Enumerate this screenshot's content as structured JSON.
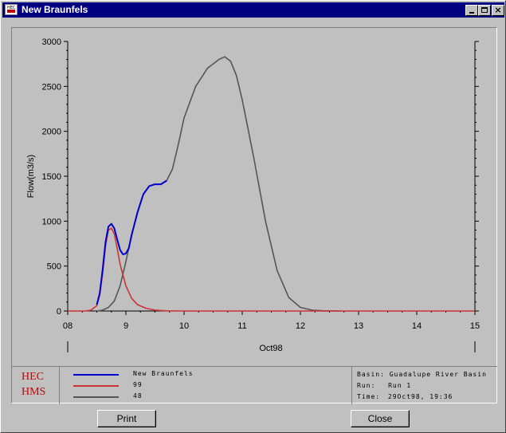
{
  "window": {
    "title": "New Braunfels",
    "controls": [
      "minimize",
      "maximize",
      "close"
    ]
  },
  "logo": {
    "line1": "HEC",
    "line2": "HMS"
  },
  "legend": [
    {
      "name": "New Braunfels",
      "color": "#0000cc"
    },
    {
      "name": "99",
      "color": "#cc3333"
    },
    {
      "name": "48",
      "color": "#555555"
    }
  ],
  "info": {
    "basin_label": "Basin:",
    "basin_value": "Guadalupe River Basin",
    "run_label": "Run:",
    "run_value": "Run 1",
    "time_label": "Time:",
    "time_value": "29Oct98, 19:36"
  },
  "buttons": {
    "print": "Print",
    "close": "Close"
  },
  "colors": {
    "titlebar": "#000080",
    "window": "#c0c0c0",
    "logo": "#cc0000"
  },
  "chart_data": {
    "type": "line",
    "ylabel": "Flow(m3/s)",
    "xlabel": "Oct98",
    "xlim": [
      8,
      15
    ],
    "ylim": [
      0,
      3000
    ],
    "xticks": [
      8,
      9,
      10,
      11,
      12,
      13,
      14,
      15
    ],
    "xtick_labels": [
      "08",
      "9",
      "10",
      "11",
      "12",
      "13",
      "14",
      "15"
    ],
    "yticks": [
      0,
      500,
      1000,
      1500,
      2000,
      2500,
      3000
    ],
    "ytick_labels": [
      "0",
      "500",
      "1000",
      "1500",
      "2000",
      "2500",
      "3000"
    ],
    "grid": false,
    "series": [
      {
        "name": "48",
        "color": "#555555",
        "x": [
          8.5,
          8.6,
          8.7,
          8.8,
          8.9,
          9.0,
          9.1,
          9.2,
          9.3,
          9.4,
          9.5,
          9.6,
          9.7,
          9.8,
          9.9,
          10.0,
          10.2,
          10.4,
          10.6,
          10.7,
          10.8,
          10.9,
          11.0,
          11.2,
          11.4,
          11.6,
          11.8,
          12.0,
          12.2,
          12.4,
          12.7
        ],
        "y": [
          0,
          10,
          40,
          110,
          280,
          550,
          850,
          1100,
          1300,
          1390,
          1410,
          1410,
          1450,
          1580,
          1850,
          2150,
          2500,
          2700,
          2800,
          2830,
          2780,
          2620,
          2350,
          1700,
          1000,
          450,
          150,
          40,
          10,
          2,
          0
        ]
      },
      {
        "name": "99",
        "color": "#cc3333",
        "x": [
          8.0,
          8.3,
          8.4,
          8.5,
          8.55,
          8.6,
          8.65,
          8.7,
          8.75,
          8.8,
          8.85,
          8.9,
          9.0,
          9.1,
          9.2,
          9.35,
          9.5,
          9.7,
          10.0,
          15.0
        ],
        "y": [
          0,
          0,
          10,
          60,
          180,
          420,
          730,
          900,
          920,
          860,
          700,
          520,
          280,
          140,
          70,
          30,
          10,
          2,
          0,
          0
        ]
      },
      {
        "name": "New Braunfels",
        "color": "#0000cc",
        "x": [
          8.5,
          8.55,
          8.6,
          8.65,
          8.7,
          8.75,
          8.8,
          8.85,
          8.9,
          8.95,
          9.0,
          9.05,
          9.1,
          9.2,
          9.3,
          9.4,
          9.5,
          9.6,
          9.7
        ],
        "y": [
          70,
          200,
          460,
          770,
          940,
          970,
          920,
          800,
          680,
          630,
          640,
          700,
          850,
          1100,
          1300,
          1390,
          1410,
          1410,
          1450
        ]
      }
    ]
  }
}
